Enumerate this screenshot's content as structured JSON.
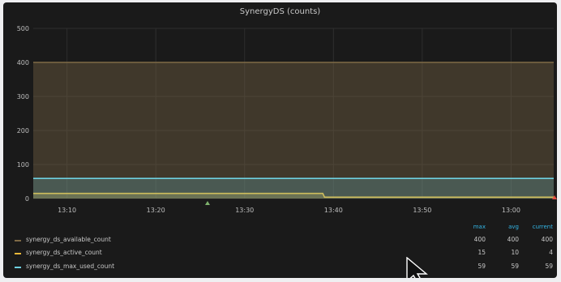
{
  "panel": {
    "title": "SynergyDS (counts)"
  },
  "chart_data": {
    "type": "area",
    "title": "SynergyDS (counts)",
    "x_ticks": [
      "13:10",
      "13:20",
      "13:30",
      "13:40",
      "13:50",
      "13:00"
    ],
    "x_tick_minutes": [
      10,
      20,
      30,
      40,
      50,
      60
    ],
    "xlim_minutes": [
      6.2,
      64.8
    ],
    "y_ticks": [
      "0",
      "100",
      "200",
      "300",
      "400",
      "500"
    ],
    "ylim": [
      0,
      500
    ],
    "grid": true,
    "legend_position": "bottom",
    "series": [
      {
        "name": "synergy_ds_available_count",
        "color": "#7f6a46",
        "x": [
          6.2,
          64.8
        ],
        "y": [
          400,
          400
        ]
      },
      {
        "name": "synergy_ds_active_count",
        "color": "#eab839",
        "x": [
          6.2,
          38.8,
          39.0,
          64.8
        ],
        "y": [
          15,
          15,
          4,
          4
        ]
      },
      {
        "name": "synergy_ds_max_used_count",
        "color": "#6ed0e0",
        "x": [
          6.2,
          64.8
        ],
        "y": [
          59,
          59
        ]
      }
    ]
  },
  "legend": {
    "headers": {
      "max": "max",
      "avg": "avg",
      "current": "current"
    },
    "rows": [
      {
        "name": "synergy_ds_available_count",
        "color": "#7f6a46",
        "max": "400",
        "avg": "400",
        "current": "400"
      },
      {
        "name": "synergy_ds_active_count",
        "color": "#eab839",
        "max": "15",
        "avg": "10",
        "current": "4"
      },
      {
        "name": "synergy_ds_max_used_count",
        "color": "#6ed0e0",
        "max": "59",
        "avg": "59",
        "current": "59"
      }
    ]
  }
}
